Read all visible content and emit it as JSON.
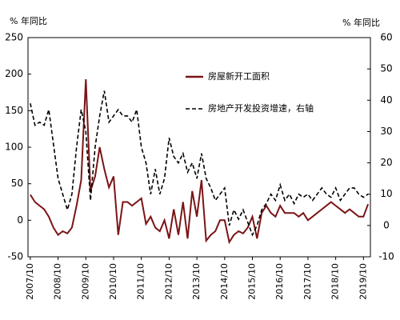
{
  "chart_data": {
    "type": "line",
    "y_label": "% 年同比",
    "y2_label": "% 年同比",
    "categories": [
      "2007/10",
      null,
      null,
      null,
      null,
      null,
      "2008/10",
      null,
      null,
      null,
      null,
      null,
      "2009/10",
      null,
      null,
      null,
      null,
      null,
      "2010/10",
      null,
      null,
      null,
      null,
      null,
      "2011/10",
      null,
      null,
      null,
      null,
      null,
      "2012/10",
      null,
      null,
      null,
      null,
      null,
      "2013/10",
      null,
      null,
      null,
      null,
      null,
      "2014/10",
      null,
      null,
      null,
      null,
      null,
      "2015/10",
      null,
      null,
      null,
      null,
      null,
      "2016/10",
      null,
      null,
      null,
      null,
      null,
      "2017/10",
      null,
      null,
      null,
      null,
      null,
      "2018/10",
      null,
      null,
      null,
      null,
      null,
      "2019/10",
      null
    ],
    "series": [
      {
        "name": "房屋新开工面积",
        "color": "#7b1416",
        "dashed": false,
        "values": [
          35,
          25,
          20,
          15,
          5,
          -10,
          -20,
          -15,
          -18,
          -10,
          20,
          55,
          193,
          40,
          60,
          100,
          70,
          45,
          60,
          -20,
          25,
          25,
          20,
          25,
          30,
          -5,
          5,
          -10,
          -15,
          0,
          -25,
          15,
          -20,
          25,
          -25,
          40,
          5,
          55,
          -28,
          -20,
          -15,
          0,
          0,
          -30,
          -20,
          -15,
          -18,
          -10,
          5,
          -25,
          10,
          20,
          10,
          5,
          20,
          10,
          10,
          10,
          5,
          10,
          0,
          5,
          10,
          15,
          20,
          25,
          20,
          15,
          10,
          15,
          10,
          5,
          5,
          22
        ]
      },
      {
        "name": "房地产开发投资增速，右轴",
        "color": "#000000",
        "dashed": true,
        "axis": "y2",
        "values": [
          39,
          32,
          33,
          32,
          37,
          26,
          15,
          10,
          5,
          10,
          25,
          37,
          30,
          8,
          25,
          35,
          43,
          33,
          35,
          37,
          35,
          35,
          33,
          37,
          25,
          20,
          10,
          18,
          10,
          15,
          28,
          22,
          20,
          23,
          17,
          20,
          15,
          23,
          15,
          12,
          8,
          10,
          12,
          0,
          5,
          2,
          5,
          1,
          -3,
          0,
          5,
          7,
          10,
          8,
          13,
          8,
          10,
          7,
          10,
          9,
          10,
          8,
          10,
          12,
          10,
          9,
          12,
          8,
          10,
          12,
          12,
          10,
          9,
          10
        ]
      }
    ],
    "ylim": [
      -50,
      250
    ],
    "yticks": [
      -50,
      0,
      50,
      100,
      150,
      200,
      250
    ],
    "y2lim": [
      -10,
      60
    ],
    "y2ticks": [
      -10,
      0,
      10,
      20,
      30,
      40,
      50,
      60
    ],
    "legend": "upper center",
    "grid": false
  }
}
